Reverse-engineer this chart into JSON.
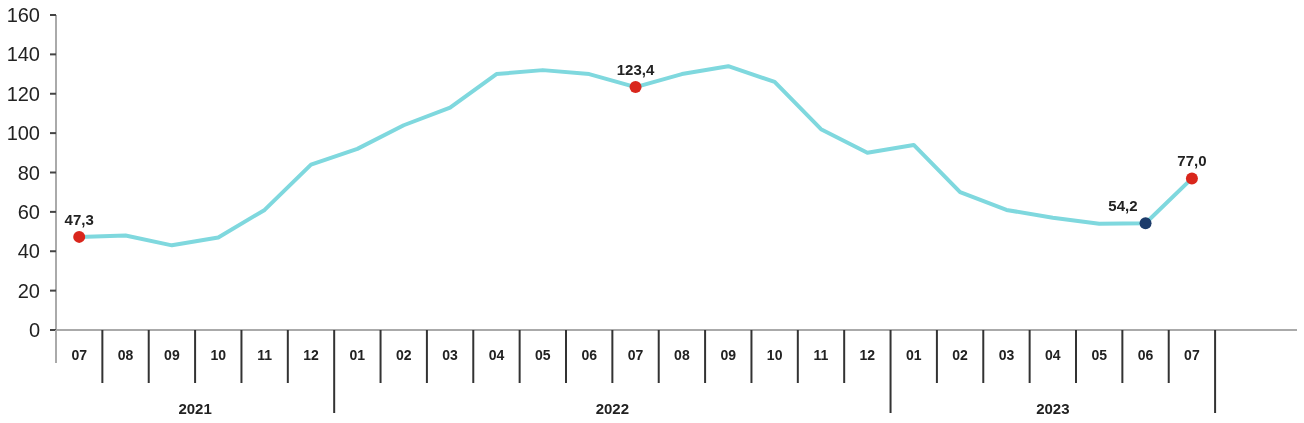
{
  "chart_data": {
    "type": "line",
    "x": [
      "2021-07",
      "2021-08",
      "2021-09",
      "2021-10",
      "2021-11",
      "2021-12",
      "2022-01",
      "2022-02",
      "2022-03",
      "2022-04",
      "2022-05",
      "2022-06",
      "2022-07",
      "2022-08",
      "2022-09",
      "2022-10",
      "2022-11",
      "2022-12",
      "2023-01",
      "2023-02",
      "2023-03",
      "2023-04",
      "2023-05",
      "2023-06",
      "2023-07"
    ],
    "xlim": [
      "2021-06-16",
      "2023-09-09"
    ],
    "xticks": [
      {
        "value": "2021-07",
        "label": "07"
      },
      {
        "value": "2021-08",
        "label": "08"
      },
      {
        "value": "2021-09",
        "label": "09"
      },
      {
        "value": "2021-10",
        "label": "10"
      },
      {
        "value": "2021-11",
        "label": "11"
      },
      {
        "value": "2021-12",
        "label": "12"
      },
      {
        "value": "2022-01",
        "label": "01"
      },
      {
        "value": "2022-02",
        "label": "02"
      },
      {
        "value": "2022-03",
        "label": "03"
      },
      {
        "value": "2022-04",
        "label": "04"
      },
      {
        "value": "2022-05",
        "label": "05"
      },
      {
        "value": "2022-06",
        "label": "06"
      },
      {
        "value": "2022-07",
        "label": "07"
      },
      {
        "value": "2022-08",
        "label": "08"
      },
      {
        "value": "2022-09",
        "label": "09"
      },
      {
        "value": "2022-10",
        "label": "10"
      },
      {
        "value": "2022-11",
        "label": "11"
      },
      {
        "value": "2022-12",
        "label": "12"
      },
      {
        "value": "2023-01",
        "label": "01"
      },
      {
        "value": "2023-02",
        "label": "02"
      },
      {
        "value": "2023-03",
        "label": "03"
      },
      {
        "value": "2023-04",
        "label": "04"
      },
      {
        "value": "2023-05",
        "label": "05"
      },
      {
        "value": "2023-06",
        "label": "06"
      },
      {
        "value": "2023-07",
        "label": "07"
      }
    ],
    "ylim": [
      0,
      160
    ],
    "yticks": [
      0,
      20,
      40,
      60,
      80,
      100,
      120,
      140,
      160
    ],
    "series": [
      {
        "color": "#7fd8de",
        "values": [
          47.3,
          48,
          43,
          47,
          61,
          84,
          92,
          104,
          113,
          130,
          132,
          130,
          123.4,
          130,
          134,
          126,
          102,
          90,
          94,
          70,
          61,
          57,
          54,
          54.2,
          77
        ],
        "colors": [
          "#d9261c",
          null,
          null,
          null,
          null,
          null,
          null,
          null,
          null,
          null,
          null,
          null,
          "#d9261c",
          null,
          null,
          null,
          null,
          null,
          null,
          null,
          null,
          null,
          null,
          "#1d3c6b",
          "#d9261c"
        ],
        "value_labels": [
          "47,3",
          null,
          null,
          null,
          null,
          null,
          null,
          null,
          null,
          null,
          null,
          null,
          "123,4",
          null,
          null,
          null,
          null,
          null,
          null,
          null,
          null,
          null,
          null,
          "54,2",
          "77,0"
        ]
      }
    ],
    "annotations": [
      "2021",
      "2022",
      "2023"
    ]
  }
}
